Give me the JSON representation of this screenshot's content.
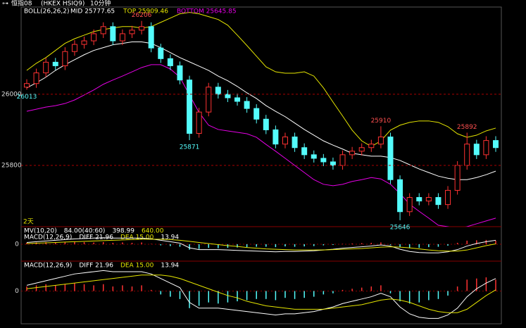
{
  "chart_data": [
    {
      "type": "candlestick",
      "header": {
        "title": "恒指08",
        "symbol": "(HKEX HSIQ9)",
        "period": "10分钟"
      },
      "indicator": "BOLL(26,26,2)",
      "range_label": "2天",
      "up_color": "#ff3232",
      "down_color": "#54fcfc",
      "open": [
        26020,
        26030,
        26060,
        26090,
        26080,
        26120,
        26140,
        26150,
        26170,
        26190,
        26150,
        26170,
        26180,
        26190,
        26130,
        26100,
        26080,
        26040,
        25890,
        25950,
        26020,
        26000,
        25990,
        25980,
        25960,
        25930,
        25900,
        25860,
        25880,
        25850,
        25830,
        25820,
        25810,
        25800,
        25830,
        25840,
        25850,
        25860,
        25880,
        25760,
        25670,
        25710,
        25700,
        25710,
        25690,
        25730,
        25800,
        25860,
        25830,
        25870
      ],
      "high": [
        26042,
        26072,
        26102,
        26102,
        26132,
        26152,
        26162,
        26182,
        26202,
        26202,
        26182,
        26192,
        26206,
        26202,
        26142,
        26112,
        26092,
        26052,
        25962,
        26032,
        26032,
        26012,
        26002,
        25992,
        25972,
        25942,
        25912,
        25892,
        25892,
        25862,
        25842,
        25832,
        25822,
        25842,
        25852,
        25862,
        25872,
        25910,
        25892,
        25772,
        25722,
        25722,
        25722,
        25722,
        25742,
        25812,
        25892,
        25872,
        25882,
        25882
      ],
      "low": [
        26013,
        26018,
        26048,
        26068,
        26068,
        26108,
        26128,
        26138,
        26158,
        26138,
        26138,
        26158,
        26168,
        26118,
        26088,
        26068,
        26028,
        25871,
        25878,
        25938,
        25988,
        25978,
        25968,
        25948,
        25918,
        25888,
        25848,
        25848,
        25838,
        25818,
        25808,
        25798,
        25788,
        25788,
        25818,
        25828,
        25838,
        25848,
        25748,
        25646,
        25658,
        25688,
        25688,
        25678,
        25678,
        25718,
        25788,
        25818,
        25818,
        25838
      ],
      "close": [
        26030,
        26060,
        26090,
        26080,
        26120,
        26140,
        26150,
        26170,
        26190,
        26150,
        26170,
        26180,
        26190,
        26130,
        26100,
        26080,
        26040,
        25890,
        25950,
        26020,
        26000,
        25990,
        25980,
        25960,
        25930,
        25900,
        25860,
        25880,
        25850,
        25830,
        25820,
        25810,
        25800,
        25830,
        25840,
        25850,
        25860,
        25880,
        25760,
        25670,
        25710,
        25700,
        25710,
        25690,
        25730,
        25800,
        25860,
        25830,
        25870,
        25850
      ],
      "bands": [
        {
          "name": "MID 25777.65",
          "color": "#ffffff",
          "values": [
            26018,
            26032,
            26048,
            26067,
            26083,
            26097,
            26111,
            26123,
            26131,
            26139,
            26143,
            26147,
            26147,
            26143,
            26131,
            26117,
            26103,
            26091,
            26079,
            26067,
            26051,
            26038,
            26022,
            26004,
            25988,
            25968,
            25952,
            25937,
            25919,
            25901,
            25885,
            25869,
            25857,
            25846,
            25834,
            25830,
            25826,
            25826,
            25822,
            25814,
            25802,
            25790,
            25780,
            25770,
            25764,
            25760,
            25760,
            25766,
            25774,
            25784
          ]
        },
        {
          "name": "TOP 25909.46",
          "color": "#e6e600",
          "values": [
            26067,
            26087,
            26103,
            26123,
            26143,
            26156,
            26166,
            26176,
            26182,
            26186,
            26190,
            26190,
            26186,
            26190,
            26202,
            26214,
            26226,
            26230,
            26226,
            26218,
            26210,
            26194,
            26166,
            26137,
            26107,
            26077,
            26063,
            26059,
            26059,
            26063,
            26051,
            26018,
            25978,
            25939,
            25899,
            25869,
            25853,
            25869,
            25899,
            25913,
            25921,
            25925,
            25925,
            25921,
            25909,
            25889,
            25879,
            25885,
            25897,
            25905
          ]
        },
        {
          "name": "BOTTOM 25645.85",
          "color": "#e600e6",
          "values": [
            25952,
            25958,
            25964,
            25968,
            25974,
            25984,
            25998,
            26012,
            26028,
            26040,
            26051,
            26063,
            26075,
            26083,
            26083,
            26071,
            26048,
            25998,
            25949,
            25913,
            25901,
            25897,
            25893,
            25889,
            25879,
            25859,
            25840,
            25820,
            25800,
            25780,
            25760,
            25747,
            25743,
            25747,
            25755,
            25760,
            25766,
            25762,
            25747,
            25721,
            25691,
            25671,
            25652,
            25632,
            25628,
            25622,
            25628,
            25636,
            25644,
            25652
          ]
        }
      ],
      "annotations": [
        {
          "index": 12,
          "value": 26206
        },
        {
          "index": 0,
          "value": 26013
        },
        {
          "index": 17,
          "value": 25871
        },
        {
          "index": 37,
          "value": 25910
        },
        {
          "index": 46,
          "value": 25892
        },
        {
          "index": 39,
          "value": 25646
        }
      ],
      "ylim": [
        25628,
        26245
      ],
      "yticks": [
        25800,
        26000
      ],
      "grid": true
    },
    {
      "type": "macd",
      "legend": [
        [
          {
            "text": "MV(10,20)",
            "color": "#ffffff"
          },
          {
            "text": "84.00(40:60)",
            "color": "#ffffff"
          },
          {
            "text": "398.99",
            "color": "#ffffff"
          },
          {
            "text": "640.00",
            "color": "#e6e600"
          }
        ],
        [
          {
            "text": "MACD(12,26,9)",
            "color": "#ffffff"
          },
          {
            "text": "DIFF 21.96",
            "color": "#ffffff"
          },
          {
            "text": "DEA 15.00",
            "color": "#e6e600"
          },
          {
            "text": "13.94",
            "color": "#ffffff"
          }
        ]
      ],
      "hist": [
        8,
        10,
        12,
        10,
        12,
        14,
        12,
        10,
        12,
        8,
        10,
        8,
        10,
        2,
        -6,
        -10,
        -14,
        -30,
        -26,
        -20,
        -22,
        -20,
        -18,
        -16,
        -14,
        -14,
        -16,
        -12,
        -14,
        -12,
        -10,
        -6,
        -4,
        2,
        4,
        6,
        8,
        10,
        -4,
        -18,
        -22,
        -20,
        -16,
        -14,
        -8,
        8,
        20,
        22,
        24,
        20
      ],
      "series": [
        {
          "color": "#ffffff",
          "values": [
            10,
            14,
            18,
            22,
            26,
            30,
            32,
            34,
            36,
            34,
            34,
            34,
            34,
            30,
            22,
            14,
            6,
            -20,
            -30,
            -30,
            -30,
            -32,
            -34,
            -36,
            -38,
            -40,
            -42,
            -40,
            -40,
            -38,
            -36,
            -32,
            -28,
            -22,
            -18,
            -14,
            -10,
            -4,
            -10,
            -28,
            -40,
            -46,
            -48,
            -48,
            -42,
            -30,
            -10,
            4,
            14,
            22
          ]
        },
        {
          "color": "#e6e600",
          "values": [
            4,
            6,
            8,
            10,
            12,
            14,
            16,
            18,
            20,
            22,
            24,
            26,
            28,
            28,
            28,
            26,
            22,
            16,
            10,
            4,
            -2,
            -8,
            -12,
            -18,
            -22,
            -26,
            -28,
            -30,
            -32,
            -32,
            -32,
            -32,
            -30,
            -28,
            -26,
            -24,
            -20,
            -16,
            -14,
            -16,
            -20,
            -26,
            -32,
            -36,
            -38,
            -38,
            -32,
            -20,
            -8,
            2
          ]
        }
      ],
      "up_color": "#ff3232",
      "down_color": "#54fcfc",
      "ylim": [
        -90,
        90
      ],
      "yticks": [
        0
      ]
    },
    {
      "type": "macd",
      "legend": [
        [
          {
            "text": "MACD(12,26,9)",
            "color": "#ffffff"
          },
          {
            "text": "DIFF 21.96",
            "color": "#ffffff"
          },
          {
            "text": "DEA 15.00",
            "color": "#e6e600"
          },
          {
            "text": "13.94",
            "color": "#ffffff"
          }
        ]
      ],
      "hist": [
        8,
        10,
        12,
        10,
        12,
        14,
        12,
        10,
        12,
        8,
        10,
        8,
        10,
        2,
        -6,
        -10,
        -14,
        -30,
        -26,
        -20,
        -22,
        -20,
        -18,
        -16,
        -14,
        -14,
        -16,
        -12,
        -14,
        -12,
        -10,
        -6,
        -4,
        2,
        4,
        6,
        8,
        10,
        -4,
        -18,
        -22,
        -20,
        -16,
        -14,
        -8,
        8,
        20,
        22,
        24,
        20
      ],
      "series": [
        {
          "color": "#ffffff",
          "values": [
            10,
            14,
            18,
            22,
            26,
            30,
            32,
            34,
            36,
            34,
            34,
            34,
            34,
            30,
            22,
            14,
            6,
            -20,
            -30,
            -30,
            -30,
            -32,
            -34,
            -36,
            -38,
            -40,
            -42,
            -40,
            -40,
            -38,
            -36,
            -32,
            -28,
            -22,
            -18,
            -14,
            -10,
            -4,
            -10,
            -28,
            -40,
            -46,
            -48,
            -48,
            -42,
            -30,
            -10,
            4,
            14,
            22
          ]
        },
        {
          "color": "#e6e600",
          "values": [
            4,
            6,
            8,
            10,
            12,
            14,
            16,
            18,
            20,
            22,
            24,
            26,
            28,
            28,
            28,
            26,
            22,
            16,
            10,
            4,
            -2,
            -8,
            -12,
            -18,
            -22,
            -26,
            -28,
            -30,
            -32,
            -32,
            -32,
            -32,
            -30,
            -28,
            -26,
            -24,
            -20,
            -16,
            -14,
            -16,
            -20,
            -26,
            -32,
            -36,
            -38,
            -38,
            -32,
            -20,
            -8,
            2
          ]
        }
      ],
      "up_color": "#ff3232",
      "down_color": "#54fcfc",
      "ylim": [
        -55,
        50
      ],
      "yticks": [
        0
      ]
    }
  ]
}
